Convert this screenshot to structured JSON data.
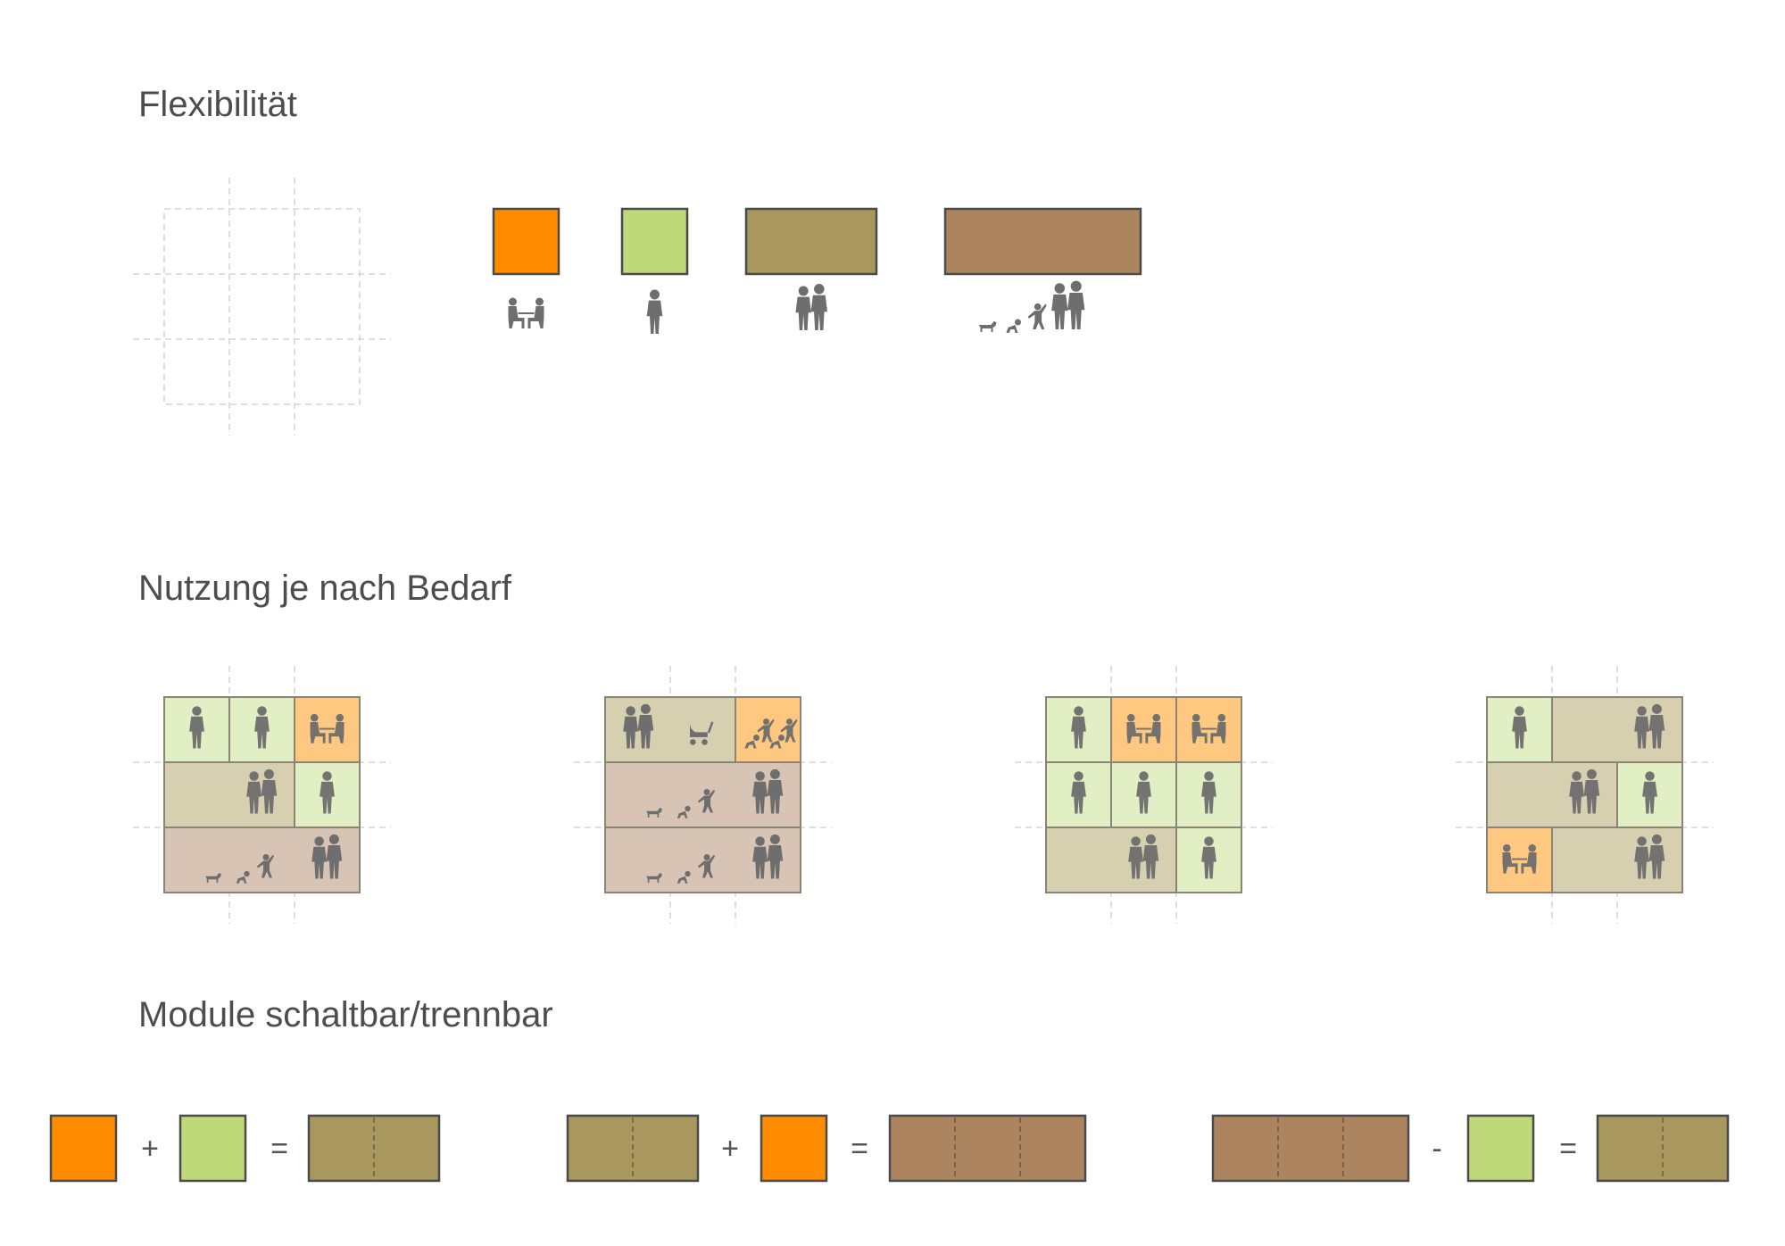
{
  "headings": {
    "flexibility": "Flexibilität",
    "usage": "Nutzung je nach Bedarf",
    "modules": "Module schaltbar/trennbar"
  },
  "colors": {
    "orange": "#ff8c00",
    "green": "#bfd87a",
    "olive": "#a8985e",
    "brown": "#ad8460",
    "orange_light": "#ffc880",
    "green_light": "#e2eec3",
    "olive_light": "#d6cfb0",
    "brown_light": "#d8c4b4",
    "figure": "#6e6e6e"
  },
  "module_types": [
    {
      "size": 1,
      "color": "orange",
      "occupants": "two-people-at-table-icon"
    },
    {
      "size": 1,
      "color": "green",
      "occupants": "single-person-icon"
    },
    {
      "size": 2,
      "color": "olive",
      "occupants": "couple-icon"
    },
    {
      "size": 3,
      "color": "brown",
      "occupants": "family-with-dog-icon"
    }
  ],
  "usage_layouts": [
    [
      [
        {
          "span": 1,
          "c": "green",
          "i": "person"
        },
        {
          "span": 1,
          "c": "green",
          "i": "person"
        },
        {
          "span": 1,
          "c": "orange",
          "i": "table"
        }
      ],
      [
        {
          "span": 2,
          "c": "olive",
          "i": "couple"
        },
        {
          "span": 1,
          "c": "green",
          "i": "person"
        }
      ],
      [
        {
          "span": 3,
          "c": "brown",
          "i": "family"
        }
      ]
    ],
    [
      [
        {
          "span": 2,
          "c": "olive",
          "i": "couple-stroller"
        },
        {
          "span": 1,
          "c": "orange",
          "i": "kids"
        }
      ],
      [
        {
          "span": 3,
          "c": "brown",
          "i": "family"
        }
      ],
      [
        {
          "span": 3,
          "c": "brown",
          "i": "family"
        }
      ]
    ],
    [
      [
        {
          "span": 1,
          "c": "green",
          "i": "person"
        },
        {
          "span": 1,
          "c": "orange",
          "i": "table"
        },
        {
          "span": 1,
          "c": "orange",
          "i": "table"
        }
      ],
      [
        {
          "span": 1,
          "c": "green",
          "i": "person"
        },
        {
          "span": 1,
          "c": "green",
          "i": "person"
        },
        {
          "span": 1,
          "c": "green",
          "i": "person"
        }
      ],
      [
        {
          "span": 2,
          "c": "olive",
          "i": "couple"
        },
        {
          "span": 1,
          "c": "green",
          "i": "person"
        }
      ]
    ],
    [
      [
        {
          "span": 1,
          "c": "green",
          "i": "person"
        },
        {
          "span": 2,
          "c": "olive",
          "i": "couple"
        }
      ],
      [
        {
          "span": 2,
          "c": "olive",
          "i": "couple"
        },
        {
          "span": 1,
          "c": "green",
          "i": "person"
        }
      ],
      [
        {
          "span": 1,
          "c": "orange",
          "i": "table"
        },
        {
          "span": 2,
          "c": "olive",
          "i": "couple"
        }
      ]
    ]
  ],
  "equations": [
    {
      "left": [
        {
          "size": 1,
          "color": "orange"
        }
      ],
      "op": "+",
      "right": [
        {
          "size": 1,
          "color": "green"
        }
      ],
      "eq": "=",
      "result": {
        "size": 2,
        "color": "olive"
      }
    },
    {
      "left": [
        {
          "size": 2,
          "color": "olive"
        }
      ],
      "op": "+",
      "right": [
        {
          "size": 1,
          "color": "orange"
        }
      ],
      "eq": "=",
      "result": {
        "size": 3,
        "color": "brown"
      }
    },
    {
      "left": [
        {
          "size": 3,
          "color": "brown"
        }
      ],
      "op": "-",
      "right": [
        {
          "size": 1,
          "color": "green"
        }
      ],
      "eq": "=",
      "result": {
        "size": 2,
        "color": "olive"
      }
    }
  ]
}
